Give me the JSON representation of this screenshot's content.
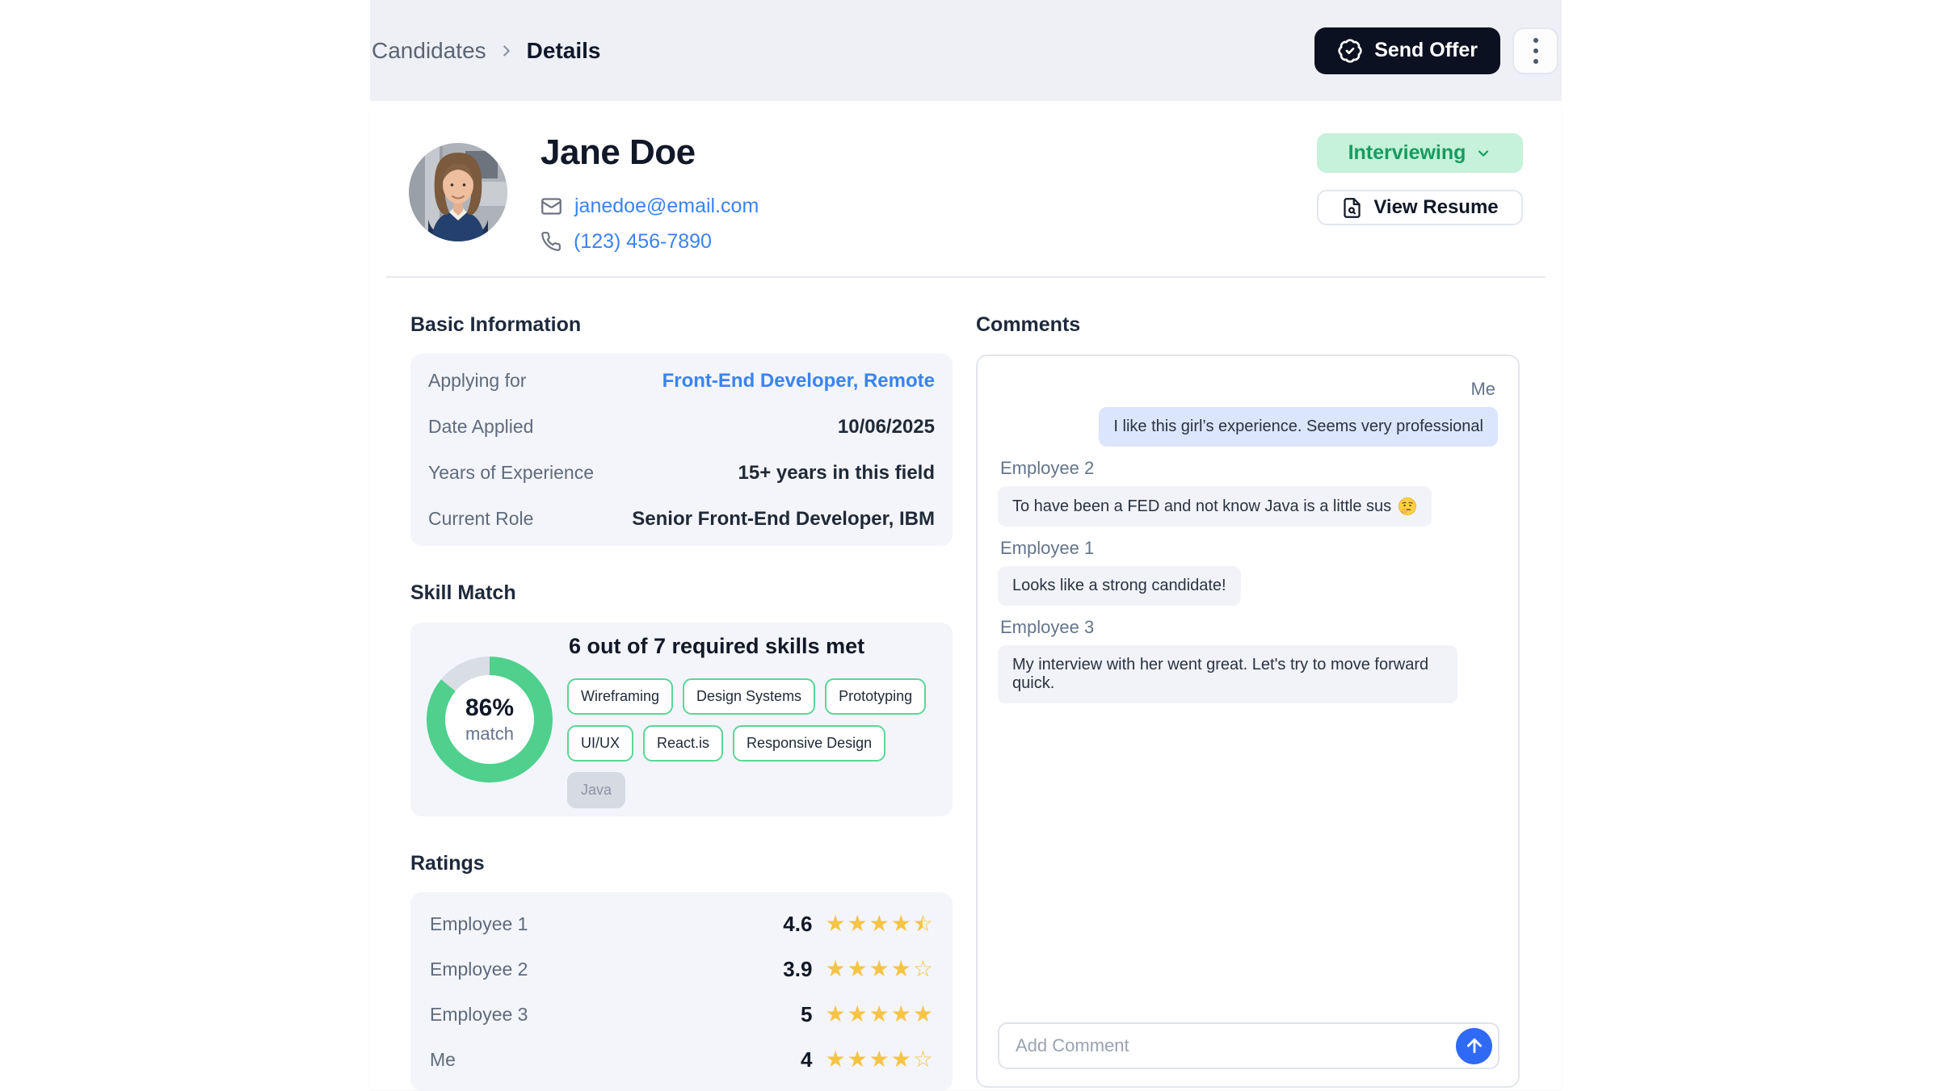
{
  "breadcrumb": {
    "parent": "Candidates",
    "current": "Details"
  },
  "topbar": {
    "send_offer_label": "Send Offer"
  },
  "profile": {
    "name": "Jane Doe",
    "email": "janedoe@email.com",
    "phone": "(123) 456-7890",
    "status": "Interviewing",
    "view_resume_label": "View Resume"
  },
  "basic_info": {
    "title": "Basic Information",
    "rows": [
      {
        "label": "Applying for",
        "value": "Front-End Developer, Remote"
      },
      {
        "label": "Date Applied",
        "value": "10/06/2025"
      },
      {
        "label": "Years of Experience",
        "value": "15+ years in this field"
      },
      {
        "label": "Current Role",
        "value": "Senior Front-End Developer, IBM"
      }
    ]
  },
  "skill_match": {
    "title": "Skill Match",
    "percent": 86,
    "percent_label": "86%",
    "match_label": "match",
    "summary": "6 out of 7 required skills met",
    "skills": [
      {
        "label": "Wireframing",
        "met": true
      },
      {
        "label": "Design Systems",
        "met": true
      },
      {
        "label": "Prototyping",
        "met": true
      },
      {
        "label": "UI/UX",
        "met": true
      },
      {
        "label": "React.is",
        "met": true
      },
      {
        "label": "Responsive Design",
        "met": true
      },
      {
        "label": "Java",
        "met": false
      }
    ]
  },
  "ratings": {
    "title": "Ratings",
    "rows": [
      {
        "name": "Employee 1",
        "value": 4.6,
        "display": "4.6"
      },
      {
        "name": "Employee 2",
        "value": 3.9,
        "display": "3.9"
      },
      {
        "name": "Employee 3",
        "value": 5,
        "display": "5"
      },
      {
        "name": "Me",
        "value": 4,
        "display": "4"
      }
    ]
  },
  "comments": {
    "title": "Comments",
    "messages": [
      {
        "author": "Me",
        "text": "I like this girl’s experience. Seems very professional",
        "emoji": ""
      },
      {
        "author": "Employee 2",
        "text": "To have been a FED and not know Java is a little sus",
        "emoji": "🤔"
      },
      {
        "author": "Employee 1",
        "text": "Looks like a strong candidate!",
        "emoji": ""
      },
      {
        "author": "Employee 3",
        "text": "My interview with her went great. Let's try to move forward quick.",
        "emoji": ""
      }
    ],
    "input_placeholder": "Add Comment"
  },
  "colors": {
    "dark_button": "#0b1120",
    "link_blue": "#3b82f6",
    "status_bg": "#c6f1da",
    "status_green": "#169c60",
    "ring_green": "#4fd08d",
    "ring_track": "#d9dde4",
    "star_yellow": "#f6c445",
    "own_bubble": "#dbe5fc",
    "bubble": "#f1f3f9",
    "send_blue": "#2f6af5"
  }
}
